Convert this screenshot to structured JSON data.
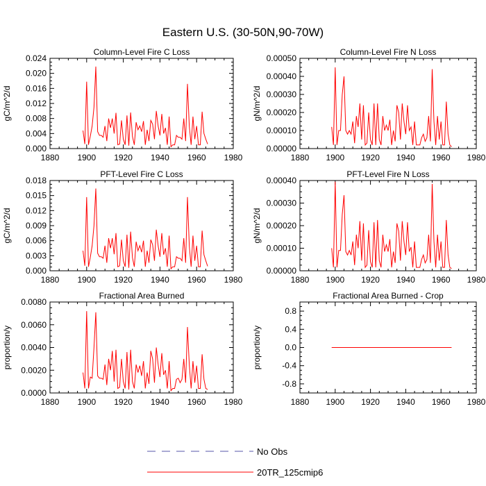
{
  "title": "Eastern U.S. (30-50N,90-70W)",
  "legend": {
    "items": [
      {
        "label": "No Obs",
        "color": "#5555aa",
        "dash": true
      },
      {
        "label": "20TR_125cmip6",
        "color": "#ff0000",
        "dash": false
      }
    ]
  },
  "chart_data": [
    {
      "type": "line",
      "title": "Column-Level Fire C Loss",
      "xlabel": "",
      "ylabel": "gC/m^2/d",
      "xlim": [
        1880,
        1980
      ],
      "ylim": [
        0,
        0.024
      ],
      "xticks": [
        1880,
        1900,
        1920,
        1940,
        1960,
        1980
      ],
      "yticks": [
        0,
        0.004,
        0.008,
        0.012,
        0.016,
        0.02,
        0.024
      ],
      "ytick_labels": [
        "0.000",
        "0.004",
        "0.008",
        "0.012",
        "0.016",
        "0.020",
        "0.024"
      ],
      "grid": false,
      "series": [
        {
          "name": "20TR_125cmip6",
          "color": "#ff0000",
          "x": [
            1898,
            1899,
            1900,
            1901,
            1902,
            1903,
            1904,
            1905,
            1906,
            1907,
            1908,
            1909,
            1910,
            1911,
            1912,
            1913,
            1914,
            1915,
            1916,
            1917,
            1918,
            1919,
            1920,
            1921,
            1922,
            1923,
            1924,
            1925,
            1926,
            1927,
            1928,
            1929,
            1930,
            1931,
            1932,
            1933,
            1934,
            1935,
            1936,
            1937,
            1938,
            1939,
            1940,
            1941,
            1942,
            1943,
            1944,
            1945,
            1946,
            1947,
            1948,
            1949,
            1950,
            1951,
            1952,
            1953,
            1954,
            1955,
            1956,
            1957,
            1958,
            1959,
            1960,
            1961,
            1962,
            1963,
            1964,
            1965,
            1966
          ],
          "y": [
            0.0048,
            0.0012,
            0.0178,
            0.001,
            0.0033,
            0.006,
            0.011,
            0.0218,
            0.0045,
            0.0035,
            0.0035,
            0.003,
            0.006,
            0.002,
            0.008,
            0.0055,
            0.008,
            0.004,
            0.0095,
            0.001,
            0.0012,
            0.0075,
            0.0025,
            0.001,
            0.0088,
            0.0008,
            0.0096,
            0.0032,
            0.001,
            0.007,
            0.005,
            0.006,
            0.0045,
            0.0073,
            0.001,
            0.005,
            0.002,
            0.0075,
            0.0065,
            0.0025,
            0.01,
            0.006,
            0.0035,
            0.0092,
            0.004,
            0.0055,
            0.001,
            0.0085,
            0.0005,
            0.001,
            0.001,
            0.0035,
            0.003,
            0.003,
            0.0025,
            0.008,
            0.002,
            0.0172,
            0.006,
            0.001,
            0.0085,
            0.0025,
            0.006,
            0.001,
            0.001,
            0.0098,
            0.004,
            0.0025,
            0.0012
          ]
        }
      ]
    },
    {
      "type": "line",
      "title": "Column-Level Fire N Loss",
      "xlabel": "",
      "ylabel": "gN/m^2/d",
      "xlim": [
        1880,
        1980
      ],
      "ylim": [
        0,
        0.0005
      ],
      "xticks": [
        1880,
        1900,
        1920,
        1940,
        1960,
        1980
      ],
      "yticks": [
        0,
        0.0001,
        0.0002,
        0.0003,
        0.0004,
        0.0005
      ],
      "ytick_labels": [
        "0.00000",
        "0.00010",
        "0.00020",
        "0.00030",
        "0.00040",
        "0.00050"
      ],
      "grid": false,
      "series": [
        {
          "name": "20TR_125cmip6",
          "color": "#ff0000",
          "x": [
            1898,
            1899,
            1900,
            1901,
            1902,
            1903,
            1904,
            1905,
            1906,
            1907,
            1908,
            1909,
            1910,
            1911,
            1912,
            1913,
            1914,
            1915,
            1916,
            1917,
            1918,
            1919,
            1920,
            1921,
            1922,
            1923,
            1924,
            1925,
            1926,
            1927,
            1928,
            1929,
            1930,
            1931,
            1932,
            1933,
            1934,
            1935,
            1936,
            1937,
            1938,
            1939,
            1940,
            1941,
            1942,
            1943,
            1944,
            1945,
            1946,
            1947,
            1948,
            1949,
            1950,
            1951,
            1952,
            1953,
            1954,
            1955,
            1956,
            1957,
            1958,
            1959,
            1960,
            1961,
            1962,
            1963,
            1964,
            1965,
            1966
          ],
          "y": [
            0.00012,
            2e-05,
            0.00045,
            2e-05,
            0.0001,
            0.0001,
            0.0003,
            0.0004,
            0.0001,
            8e-05,
            0.0001,
            8e-05,
            0.00015,
            3e-05,
            0.00018,
            0.00012,
            0.00025,
            5e-05,
            0.00024,
            2e-05,
            3e-05,
            0.0002,
            5e-05,
            2e-05,
            0.00025,
            2e-05,
            0.00025,
            5e-05,
            2e-05,
            0.00018,
            0.0001,
            0.00013,
            0.0001,
            0.00016,
            2e-05,
            0.0001,
            4e-05,
            0.00024,
            0.0002,
            5e-05,
            0.00025,
            0.00015,
            8e-05,
            0.00024,
            0.0001,
            0.00012,
            2e-05,
            0.00015,
            2e-05,
            2e-05,
            2e-05,
            6e-05,
            8e-05,
            4e-05,
            6e-05,
            0.00018,
            4e-05,
            0.00044,
            0.00015,
            2e-05,
            0.00018,
            5e-05,
            0.00015,
            2e-05,
            2e-05,
            0.00026,
            8e-05,
            2e-05,
            1e-05
          ]
        }
      ]
    },
    {
      "type": "line",
      "title": "PFT-Level Fire C Loss",
      "xlabel": "",
      "ylabel": "gC/m^2/d",
      "xlim": [
        1880,
        1980
      ],
      "ylim": [
        0,
        0.018
      ],
      "xticks": [
        1880,
        1900,
        1920,
        1940,
        1960,
        1980
      ],
      "yticks": [
        0,
        0.003,
        0.006,
        0.009,
        0.012,
        0.015,
        0.018
      ],
      "ytick_labels": [
        "0.000",
        "0.003",
        "0.006",
        "0.009",
        "0.012",
        "0.015",
        "0.018"
      ],
      "grid": false,
      "series": [
        {
          "name": "20TR_125cmip6",
          "color": "#ff0000",
          "x": [
            1898,
            1899,
            1900,
            1901,
            1902,
            1903,
            1904,
            1905,
            1906,
            1907,
            1908,
            1909,
            1910,
            1911,
            1912,
            1913,
            1914,
            1915,
            1916,
            1917,
            1918,
            1919,
            1920,
            1921,
            1922,
            1923,
            1924,
            1925,
            1926,
            1927,
            1928,
            1929,
            1930,
            1931,
            1932,
            1933,
            1934,
            1935,
            1936,
            1937,
            1938,
            1939,
            1940,
            1941,
            1942,
            1943,
            1944,
            1945,
            1946,
            1947,
            1948,
            1949,
            1950,
            1951,
            1952,
            1953,
            1954,
            1955,
            1956,
            1957,
            1958,
            1959,
            1960,
            1961,
            1962,
            1963,
            1964,
            1965,
            1966
          ],
          "y": [
            0.004,
            0.001,
            0.0147,
            0.0008,
            0.0027,
            0.005,
            0.009,
            0.0164,
            0.0035,
            0.0028,
            0.0028,
            0.0025,
            0.005,
            0.0016,
            0.0065,
            0.0045,
            0.0065,
            0.0033,
            0.0075,
            0.0008,
            0.001,
            0.0062,
            0.002,
            0.0008,
            0.0072,
            0.0006,
            0.0078,
            0.0026,
            0.0008,
            0.0058,
            0.004,
            0.005,
            0.0037,
            0.006,
            0.0008,
            0.004,
            0.0016,
            0.0062,
            0.0052,
            0.002,
            0.0082,
            0.005,
            0.0028,
            0.0075,
            0.0032,
            0.0045,
            0.0008,
            0.007,
            0.0004,
            0.0008,
            0.0008,
            0.0028,
            0.0025,
            0.0025,
            0.002,
            0.0065,
            0.0016,
            0.0147,
            0.005,
            0.0008,
            0.007,
            0.002,
            0.005,
            0.0008,
            0.0008,
            0.008,
            0.0032,
            0.002,
            0.0009
          ]
        }
      ]
    },
    {
      "type": "line",
      "title": "PFT-Level Fire N Loss",
      "xlabel": "",
      "ylabel": "gN/m^2/d",
      "xlim": [
        1880,
        1980
      ],
      "ylim": [
        0,
        0.0004
      ],
      "xticks": [
        1880,
        1900,
        1920,
        1940,
        1960,
        1980
      ],
      "yticks": [
        0,
        0.0001,
        0.0002,
        0.0003,
        0.0004
      ],
      "ytick_labels": [
        "0.00000",
        "0.00010",
        "0.00020",
        "0.00030",
        "0.00040"
      ],
      "grid": false,
      "series": [
        {
          "name": "20TR_125cmip6",
          "color": "#ff0000",
          "x": [
            1898,
            1899,
            1900,
            1901,
            1902,
            1903,
            1904,
            1905,
            1906,
            1907,
            1908,
            1909,
            1910,
            1911,
            1912,
            1913,
            1914,
            1915,
            1916,
            1917,
            1918,
            1919,
            1920,
            1921,
            1922,
            1923,
            1924,
            1925,
            1926,
            1927,
            1928,
            1929,
            1930,
            1931,
            1932,
            1933,
            1934,
            1935,
            1936,
            1937,
            1938,
            1939,
            1940,
            1941,
            1942,
            1943,
            1944,
            1945,
            1946,
            1947,
            1948,
            1949,
            1950,
            1951,
            1952,
            1953,
            1954,
            1955,
            1956,
            1957,
            1958,
            1959,
            1960,
            1961,
            1962,
            1963,
            1964,
            1965,
            1966
          ],
          "y": [
            0.0001,
            1.5e-05,
            0.000395,
            1.5e-05,
            9e-05,
            9e-05,
            0.00025,
            0.000335,
            8.5e-05,
            7e-05,
            9e-05,
            7e-05,
            0.00013,
            2.5e-05,
            0.00016,
            0.0001,
            0.00022,
            4.5e-05,
            0.00021,
            1.5e-05,
            2.5e-05,
            0.00018,
            4e-05,
            1.5e-05,
            0.000215,
            1.5e-05,
            0.000225,
            4.5e-05,
            1.5e-05,
            0.00016,
            8.5e-05,
            0.000115,
            8.5e-05,
            0.00014,
            1.5e-05,
            8.5e-05,
            3.5e-05,
            0.00021,
            0.000175,
            4.5e-05,
            0.00022,
            0.00013,
            7e-05,
            0.000215,
            8.5e-05,
            0.000105,
            1.5e-05,
            0.00013,
            1.5e-05,
            1.5e-05,
            1.5e-05,
            5e-05,
            7e-05,
            3.5e-05,
            5e-05,
            0.00016,
            3.5e-05,
            0.000385,
            0.00013,
            1.5e-05,
            0.00016,
            4.5e-05,
            0.00013,
            1.5e-05,
            1.5e-05,
            0.000225,
            7e-05,
            1.5e-05,
            1e-05
          ]
        }
      ]
    },
    {
      "type": "line",
      "title": "Fractional Area Burned",
      "xlabel": "",
      "ylabel": "proportion/y",
      "xlim": [
        1880,
        1980
      ],
      "ylim": [
        0,
        0.008
      ],
      "xticks": [
        1880,
        1900,
        1920,
        1940,
        1960,
        1980
      ],
      "yticks": [
        0,
        0.002,
        0.004,
        0.006,
        0.008
      ],
      "ytick_labels": [
        "0.0000",
        "0.0020",
        "0.0040",
        "0.0060",
        "0.0080"
      ],
      "grid": false,
      "series": [
        {
          "name": "20TR_125cmip6",
          "color": "#ff0000",
          "x": [
            1898,
            1899,
            1900,
            1901,
            1902,
            1903,
            1904,
            1905,
            1906,
            1907,
            1908,
            1909,
            1910,
            1911,
            1912,
            1913,
            1914,
            1915,
            1916,
            1917,
            1918,
            1919,
            1920,
            1921,
            1922,
            1923,
            1924,
            1925,
            1926,
            1927,
            1928,
            1929,
            1930,
            1931,
            1932,
            1933,
            1934,
            1935,
            1936,
            1937,
            1938,
            1939,
            1940,
            1941,
            1942,
            1943,
            1944,
            1945,
            1946,
            1947,
            1948,
            1949,
            1950,
            1951,
            1952,
            1953,
            1954,
            1955,
            1956,
            1957,
            1958,
            1959,
            1960,
            1961,
            1962,
            1963,
            1964,
            1965,
            1966
          ],
          "y": [
            0.0018,
            0.0004,
            0.0072,
            0.0004,
            0.0014,
            0.0013,
            0.004,
            0.0071,
            0.0015,
            0.0013,
            0.0013,
            0.0012,
            0.0025,
            0.0007,
            0.003,
            0.002,
            0.0037,
            0.001,
            0.0038,
            0.0004,
            0.0005,
            0.003,
            0.001,
            0.0004,
            0.0036,
            0.0003,
            0.0038,
            0.001,
            0.0004,
            0.0025,
            0.0018,
            0.0024,
            0.0015,
            0.0028,
            0.0004,
            0.0018,
            0.0008,
            0.0037,
            0.003,
            0.0009,
            0.004,
            0.0025,
            0.0014,
            0.0035,
            0.0016,
            0.002,
            0.0004,
            0.0028,
            0.0002,
            0.0004,
            0.0004,
            0.0012,
            0.0013,
            0.0009,
            0.0012,
            0.003,
            0.0009,
            0.0058,
            0.0025,
            0.0004,
            0.0028,
            0.0009,
            0.0024,
            0.0004,
            0.0004,
            0.0034,
            0.0012,
            0.0004,
            0.0003
          ]
        }
      ]
    },
    {
      "type": "line",
      "title": "Fractional Area Burned - Crop",
      "xlabel": "",
      "ylabel": "proportion/y",
      "xlim": [
        1880,
        1980
      ],
      "ylim": [
        -1,
        1
      ],
      "xticks": [
        1880,
        1900,
        1920,
        1940,
        1960,
        1980
      ],
      "yticks": [
        -0.8,
        -0.4,
        0,
        0.4,
        0.8
      ],
      "ytick_labels": [
        "-0.8",
        "-0.4",
        "0.0",
        "0.4",
        "0.8"
      ],
      "grid": false,
      "series": [
        {
          "name": "20TR_125cmip6",
          "color": "#ff0000",
          "x": [
            1898,
            1966
          ],
          "y": [
            0,
            0
          ]
        }
      ]
    }
  ]
}
